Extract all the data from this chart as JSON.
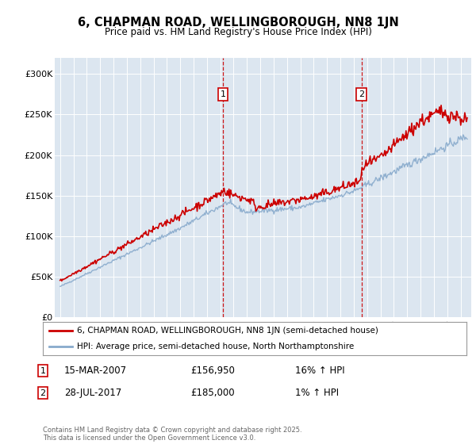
{
  "title": "6, CHAPMAN ROAD, WELLINGBOROUGH, NN8 1JN",
  "subtitle": "Price paid vs. HM Land Registry's House Price Index (HPI)",
  "background_color": "#dce6f0",
  "plot_bg_color": "#dce6f0",
  "ylim": [
    0,
    320000
  ],
  "yticks": [
    0,
    50000,
    100000,
    150000,
    200000,
    250000,
    300000
  ],
  "ytick_labels": [
    "£0",
    "£50K",
    "£100K",
    "£150K",
    "£200K",
    "£250K",
    "£300K"
  ],
  "xlim_start": 1994.6,
  "xlim_end": 2025.8,
  "sale1_date": 2007.2,
  "sale1_price": 156950,
  "sale1_label": "1",
  "sale1_text": "15-MAR-2007",
  "sale1_price_text": "£156,950",
  "sale1_hpi_text": "16% ↑ HPI",
  "sale2_date": 2017.57,
  "sale2_price": 185000,
  "sale2_label": "2",
  "sale2_text": "28-JUL-2017",
  "sale2_price_text": "£185,000",
  "sale2_hpi_text": "1% ↑ HPI",
  "legend_line1": "6, CHAPMAN ROAD, WELLINGBOROUGH, NN8 1JN (semi-detached house)",
  "legend_line2": "HPI: Average price, semi-detached house, North Northamptonshire",
  "footer": "Contains HM Land Registry data © Crown copyright and database right 2025.\nThis data is licensed under the Open Government Licence v3.0.",
  "line_color_red": "#cc0000",
  "line_color_blue": "#88aacc",
  "grid_color": "#ffffff",
  "vline_color": "#cc0000",
  "marker_y": 275000
}
